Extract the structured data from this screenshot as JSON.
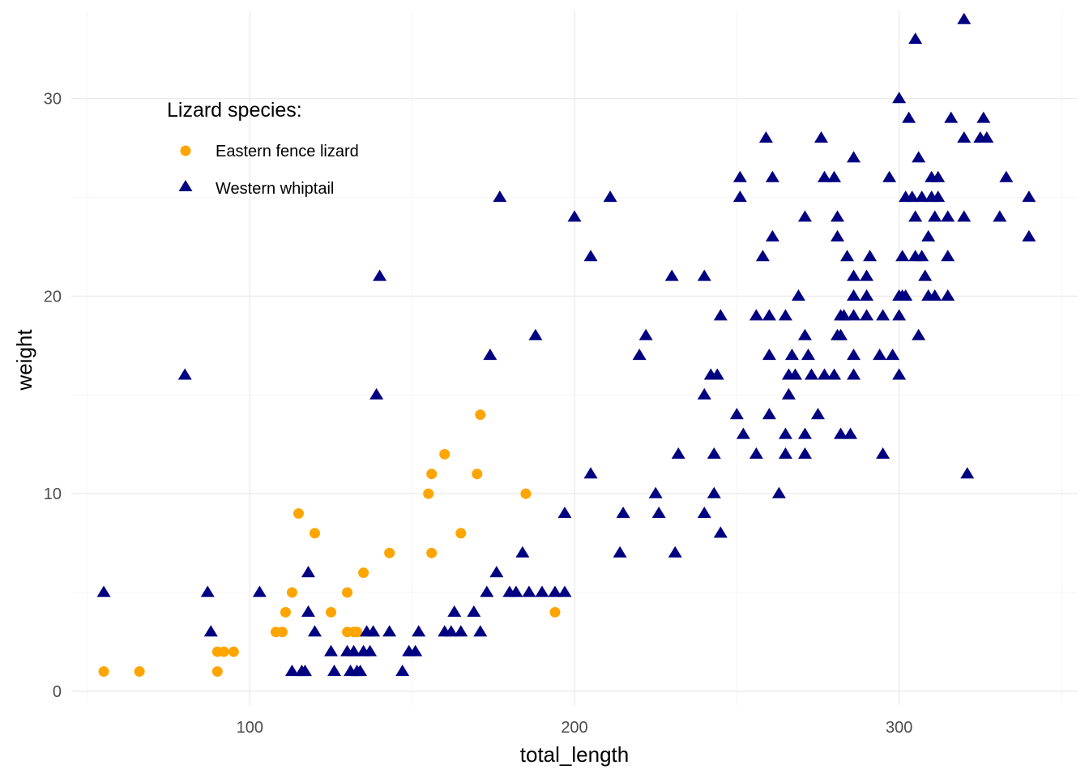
{
  "chart_data": {
    "type": "scatter",
    "xlabel": "total_length",
    "ylabel": "weight",
    "xlim": [
      45,
      355
    ],
    "ylim": [
      -0.7,
      34.5
    ],
    "x_ticks": [
      100,
      200,
      300
    ],
    "y_ticks": [
      0,
      10,
      20,
      30
    ],
    "x_tick_labels": [
      "100",
      "200",
      "300"
    ],
    "y_tick_labels": [
      "0",
      "10",
      "20",
      "30"
    ],
    "grid": true,
    "legend": {
      "title": "Lizard species:",
      "placement": "top-left",
      "entries": [
        "Eastern fence lizard",
        "Western whiptail"
      ]
    },
    "series": [
      {
        "name": "Eastern fence lizard",
        "marker": "circle",
        "color": "#FFA500",
        "points": [
          [
            55,
            1
          ],
          [
            66,
            1
          ],
          [
            90,
            1
          ],
          [
            90,
            2
          ],
          [
            92,
            2
          ],
          [
            95,
            2
          ],
          [
            108,
            3
          ],
          [
            110,
            3
          ],
          [
            111,
            4
          ],
          [
            113,
            5
          ],
          [
            115,
            9
          ],
          [
            120,
            8
          ],
          [
            125,
            4
          ],
          [
            130,
            5
          ],
          [
            130,
            3
          ],
          [
            132,
            3
          ],
          [
            133,
            3
          ],
          [
            135,
            6
          ],
          [
            143,
            7
          ],
          [
            155,
            10
          ],
          [
            156,
            11
          ],
          [
            156,
            7
          ],
          [
            160,
            12
          ],
          [
            165,
            8
          ],
          [
            170,
            11
          ],
          [
            171,
            14
          ],
          [
            185,
            10
          ],
          [
            194,
            4
          ]
        ]
      },
      {
        "name": "Western whiptail",
        "marker": "triangle",
        "color": "#000080",
        "points": [
          [
            55,
            5
          ],
          [
            80,
            16
          ],
          [
            87,
            5
          ],
          [
            88,
            3
          ],
          [
            103,
            5
          ],
          [
            113,
            1
          ],
          [
            116,
            1
          ],
          [
            117,
            1
          ],
          [
            118,
            6
          ],
          [
            118,
            4
          ],
          [
            120,
            3
          ],
          [
            125,
            2
          ],
          [
            126,
            1
          ],
          [
            130,
            2
          ],
          [
            131,
            1
          ],
          [
            132,
            2
          ],
          [
            133,
            1
          ],
          [
            134,
            1
          ],
          [
            135,
            2
          ],
          [
            136,
            3
          ],
          [
            137,
            2
          ],
          [
            138,
            3
          ],
          [
            139,
            15
          ],
          [
            140,
            21
          ],
          [
            143,
            3
          ],
          [
            147,
            1
          ],
          [
            149,
            2
          ],
          [
            151,
            2
          ],
          [
            152,
            3
          ],
          [
            160,
            3
          ],
          [
            162,
            3
          ],
          [
            163,
            4
          ],
          [
            165,
            3
          ],
          [
            169,
            4
          ],
          [
            171,
            3
          ],
          [
            173,
            5
          ],
          [
            174,
            17
          ],
          [
            176,
            6
          ],
          [
            177,
            25
          ],
          [
            180,
            5
          ],
          [
            182,
            5
          ],
          [
            184,
            7
          ],
          [
            186,
            5
          ],
          [
            188,
            18
          ],
          [
            190,
            5
          ],
          [
            194,
            5
          ],
          [
            197,
            9
          ],
          [
            197,
            5
          ],
          [
            200,
            24
          ],
          [
            205,
            11
          ],
          [
            205,
            22
          ],
          [
            211,
            25
          ],
          [
            214,
            7
          ],
          [
            215,
            9
          ],
          [
            220,
            17
          ],
          [
            222,
            18
          ],
          [
            225,
            10
          ],
          [
            226,
            9
          ],
          [
            230,
            21
          ],
          [
            231,
            7
          ],
          [
            232,
            12
          ],
          [
            240,
            21
          ],
          [
            240,
            9
          ],
          [
            240,
            15
          ],
          [
            242,
            16
          ],
          [
            243,
            10
          ],
          [
            243,
            12
          ],
          [
            244,
            16
          ],
          [
            245,
            19
          ],
          [
            245,
            8
          ],
          [
            250,
            14
          ],
          [
            251,
            26
          ],
          [
            251,
            25
          ],
          [
            252,
            13
          ],
          [
            256,
            19
          ],
          [
            256,
            12
          ],
          [
            258,
            22
          ],
          [
            259,
            28
          ],
          [
            260,
            14
          ],
          [
            260,
            17
          ],
          [
            260,
            19
          ],
          [
            261,
            23
          ],
          [
            261,
            26
          ],
          [
            263,
            10
          ],
          [
            265,
            13
          ],
          [
            265,
            19
          ],
          [
            265,
            12
          ],
          [
            266,
            15
          ],
          [
            266,
            16
          ],
          [
            267,
            17
          ],
          [
            268,
            16
          ],
          [
            269,
            20
          ],
          [
            271,
            24
          ],
          [
            271,
            18
          ],
          [
            271,
            13
          ],
          [
            271,
            12
          ],
          [
            272,
            17
          ],
          [
            273,
            16
          ],
          [
            275,
            14
          ],
          [
            276,
            28
          ],
          [
            277,
            26
          ],
          [
            277,
            16
          ],
          [
            280,
            26
          ],
          [
            280,
            16
          ],
          [
            281,
            18
          ],
          [
            281,
            24
          ],
          [
            281,
            23
          ],
          [
            282,
            18
          ],
          [
            282,
            19
          ],
          [
            282,
            13
          ],
          [
            283,
            19
          ],
          [
            284,
            22
          ],
          [
            285,
            13
          ],
          [
            286,
            17
          ],
          [
            286,
            16
          ],
          [
            286,
            19
          ],
          [
            286,
            21
          ],
          [
            286,
            20
          ],
          [
            286,
            27
          ],
          [
            290,
            19
          ],
          [
            290,
            20
          ],
          [
            290,
            21
          ],
          [
            291,
            22
          ],
          [
            294,
            17
          ],
          [
            295,
            12
          ],
          [
            295,
            19
          ],
          [
            297,
            26
          ],
          [
            298,
            17
          ],
          [
            300,
            16
          ],
          [
            300,
            19
          ],
          [
            300,
            20
          ],
          [
            300,
            30
          ],
          [
            301,
            22
          ],
          [
            301,
            20
          ],
          [
            302,
            20
          ],
          [
            302,
            25
          ],
          [
            303,
            29
          ],
          [
            304,
            25
          ],
          [
            305,
            33
          ],
          [
            305,
            24
          ],
          [
            305,
            22
          ],
          [
            306,
            18
          ],
          [
            306,
            27
          ],
          [
            307,
            22
          ],
          [
            307,
            25
          ],
          [
            308,
            21
          ],
          [
            309,
            20
          ],
          [
            309,
            23
          ],
          [
            310,
            26
          ],
          [
            310,
            25
          ],
          [
            311,
            24
          ],
          [
            311,
            20
          ],
          [
            312,
            26
          ],
          [
            312,
            25
          ],
          [
            315,
            24
          ],
          [
            315,
            20
          ],
          [
            315,
            22
          ],
          [
            316,
            29
          ],
          [
            320,
            24
          ],
          [
            320,
            28
          ],
          [
            320,
            34
          ],
          [
            321,
            11
          ],
          [
            325,
            28
          ],
          [
            326,
            29
          ],
          [
            327,
            28
          ],
          [
            331,
            24
          ],
          [
            333,
            26
          ],
          [
            340,
            23
          ],
          [
            340,
            25
          ]
        ]
      }
    ]
  }
}
